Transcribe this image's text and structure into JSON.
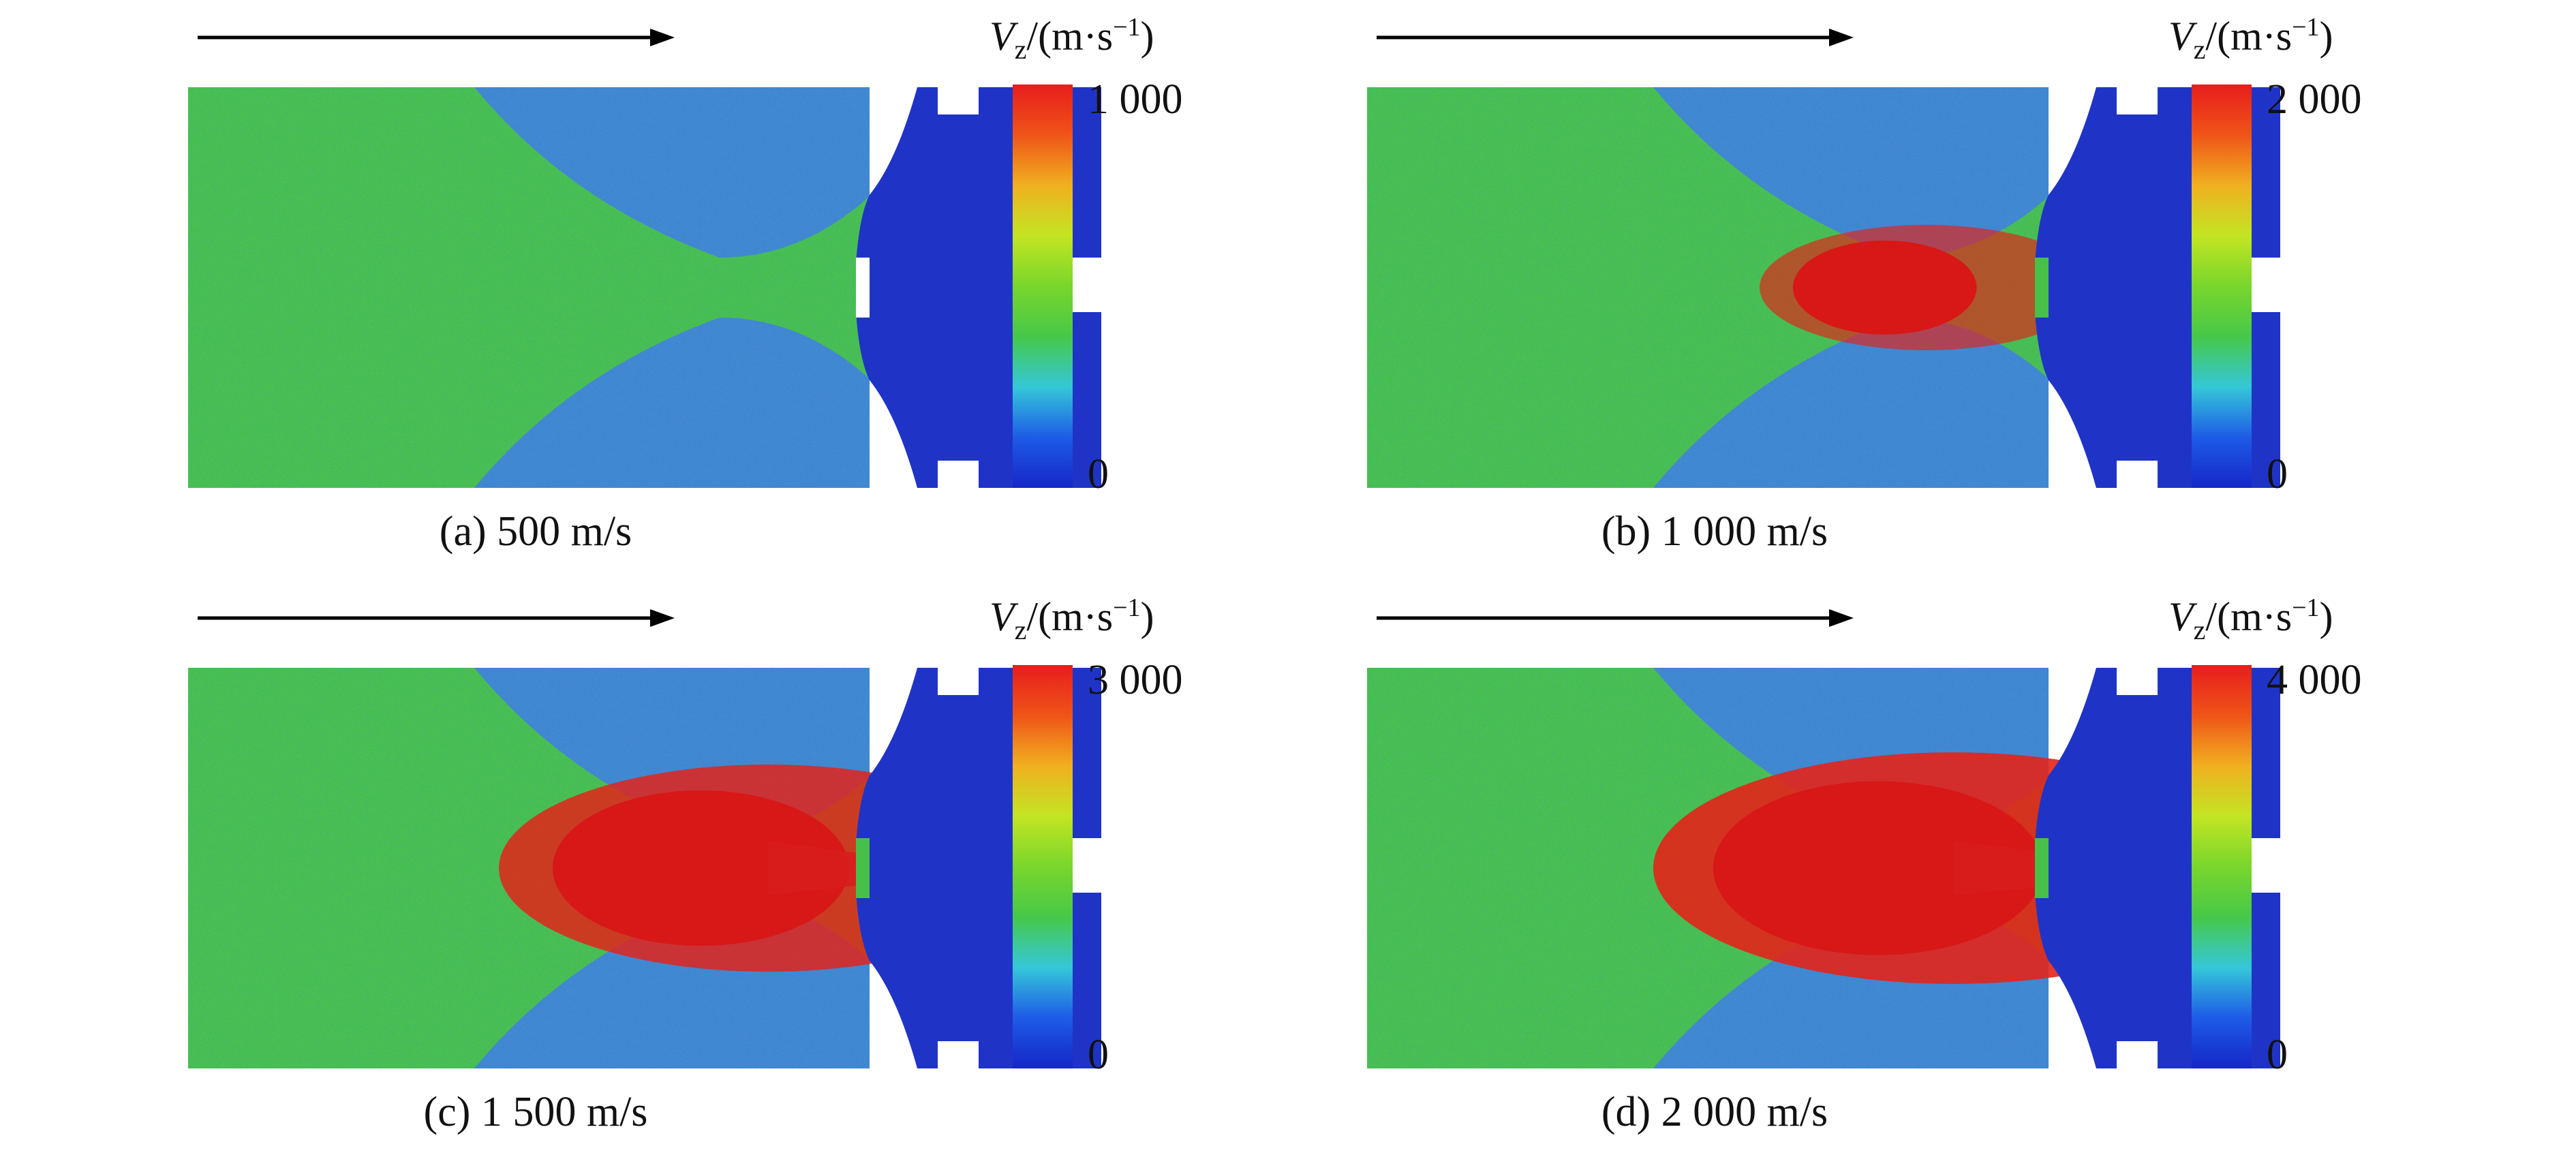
{
  "colorbar": {
    "label_prefix": "V",
    "label_subscript": "z",
    "label_units_open": "/(m·s",
    "label_units_exp": "−1",
    "label_units_close": ")",
    "colors": [
      "#1626c8",
      "#1e5be6",
      "#35c7d8",
      "#46c84a",
      "#79d62c",
      "#c3e523",
      "#f0b020",
      "#ef5418",
      "#e71d1d"
    ]
  },
  "panels": [
    {
      "id": "a",
      "caption": "(a) 500 m/s",
      "max_label": "1 000",
      "min_label": "0",
      "burst": 0.0
    },
    {
      "id": "b",
      "caption": "(b) 1 000 m/s",
      "max_label": "2 000",
      "min_label": "0",
      "burst": 0.35
    },
    {
      "id": "c",
      "caption": "(c) 1 500 m/s",
      "max_label": "3 000",
      "min_label": "0",
      "burst": 0.85
    },
    {
      "id": "d",
      "caption": "(d) 2 000 m/s",
      "max_label": "4 000",
      "min_label": "0",
      "burst": 1.0
    }
  ]
}
